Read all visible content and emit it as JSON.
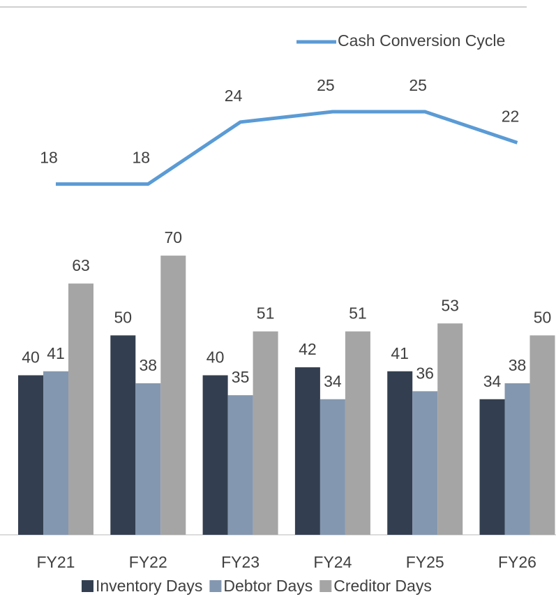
{
  "chart_data": {
    "type": "bar_line",
    "categories": [
      "FY21",
      "FY22",
      "FY23",
      "FY24",
      "FY25",
      "FY26"
    ],
    "series": [
      {
        "name": "Inventory Days",
        "color": "#333f50",
        "type": "bar",
        "values": [
          40,
          50,
          40,
          42,
          41,
          34
        ]
      },
      {
        "name": "Debtor Days",
        "color": "#8497b0",
        "type": "bar",
        "values": [
          41,
          38,
          35,
          34,
          36,
          38
        ]
      },
      {
        "name": "Creditor Days",
        "color": "#a5a5a5",
        "type": "bar",
        "values": [
          63,
          70,
          51,
          51,
          53,
          50
        ]
      },
      {
        "name": "Cash Conversion Cycle",
        "color": "#5b9bd5",
        "type": "line",
        "axis": "y2",
        "values": [
          18,
          18,
          24,
          25,
          25,
          22
        ]
      }
    ],
    "ylim": [
      0,
      80
    ],
    "y2lim": [
      0,
      30
    ]
  }
}
